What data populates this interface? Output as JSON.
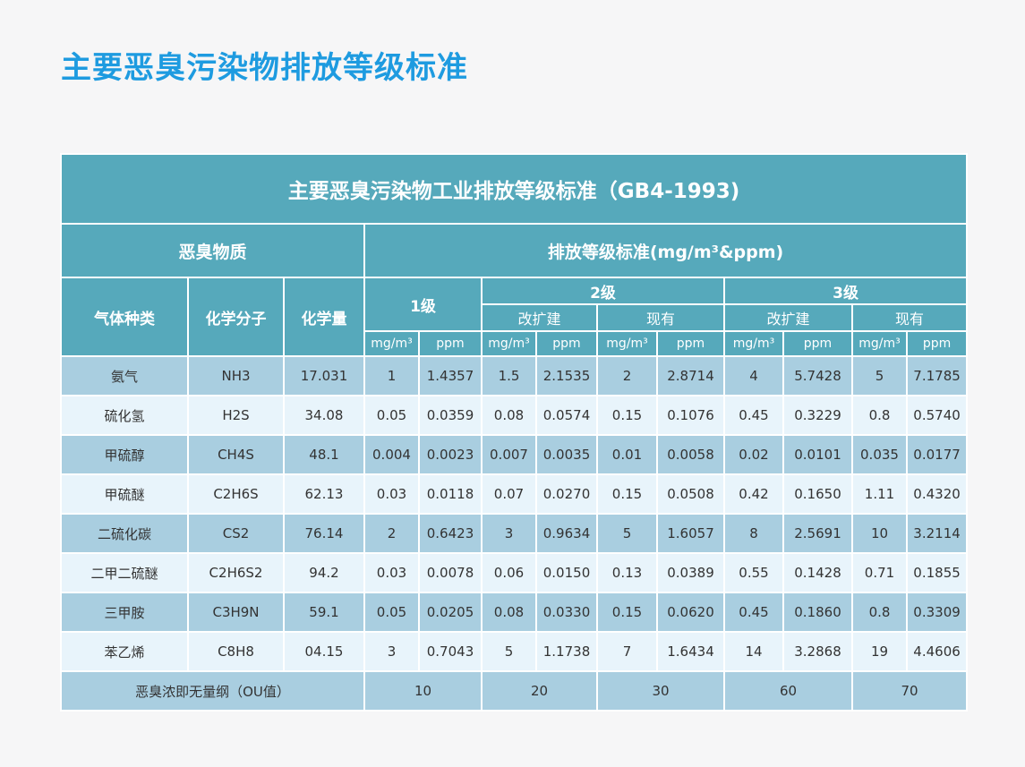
{
  "page_title": "主要恶臭污染物排放等级标准",
  "table": {
    "title": "主要恶臭污染物工业排放等级标准（GB4-1993)",
    "group_left": "恶臭物质",
    "group_right": "排放等级标准(mg/m³&ppm)",
    "col_gas": "气体种类",
    "col_formula": "化学分子",
    "col_mass": "化学量",
    "level1": "1级",
    "level2": "2级",
    "level3": "3级",
    "sub_new": "改扩建",
    "sub_existing": "现有",
    "unit_mg": "mg/m³",
    "unit_ppm": "ppm",
    "rows": [
      {
        "gas": "氨气",
        "formula": "NH3",
        "mass": "17.031",
        "v": [
          "1",
          "1.4357",
          "1.5",
          "2.1535",
          "2",
          "2.8714",
          "4",
          "5.7428",
          "5",
          "7.1785"
        ]
      },
      {
        "gas": "硫化氢",
        "formula": "H2S",
        "mass": "34.08",
        "v": [
          "0.05",
          "0.0359",
          "0.08",
          "0.0574",
          "0.15",
          "0.1076",
          "0.45",
          "0.3229",
          "0.8",
          "0.5740"
        ]
      },
      {
        "gas": "甲硫醇",
        "formula": "CH4S",
        "mass": "48.1",
        "v": [
          "0.004",
          "0.0023",
          "0.007",
          "0.0035",
          "0.01",
          "0.0058",
          "0.02",
          "0.0101",
          "0.035",
          "0.0177"
        ]
      },
      {
        "gas": "甲硫醚",
        "formula": "C2H6S",
        "mass": "62.13",
        "v": [
          "0.03",
          "0.0118",
          "0.07",
          "0.0270",
          "0.15",
          "0.0508",
          "0.42",
          "0.1650",
          "1.11",
          "0.4320"
        ]
      },
      {
        "gas": "二硫化碳",
        "formula": "CS2",
        "mass": "76.14",
        "v": [
          "2",
          "0.6423",
          "3",
          "0.9634",
          "5",
          "1.6057",
          "8",
          "2.5691",
          "10",
          "3.2114"
        ]
      },
      {
        "gas": "二甲二硫醚",
        "formula": "C2H6S2",
        "mass": "94.2",
        "v": [
          "0.03",
          "0.0078",
          "0.06",
          "0.0150",
          "0.13",
          "0.0389",
          "0.55",
          "0.1428",
          "0.71",
          "0.1855"
        ]
      },
      {
        "gas": "三甲胺",
        "formula": "C3H9N",
        "mass": "59.1",
        "v": [
          "0.05",
          "0.0205",
          "0.08",
          "0.0330",
          "0.15",
          "0.0620",
          "0.45",
          "0.1860",
          "0.8",
          "0.3309"
        ]
      },
      {
        "gas": "苯乙烯",
        "formula": "C8H8",
        "mass": "04.15",
        "v": [
          "3",
          "0.7043",
          "5",
          "1.1738",
          "7",
          "1.6434",
          "14",
          "3.2868",
          "19",
          "4.4606"
        ]
      }
    ],
    "ou_label": "恶臭浓即无量纲（OU值）",
    "ou_values": [
      "10",
      "20",
      "30",
      "60",
      "70"
    ]
  },
  "colors": {
    "title": "#1e9be0",
    "header_bg": "#56a9bb",
    "row_dark": "#a9cee0",
    "row_light": "#e8f4fb"
  }
}
